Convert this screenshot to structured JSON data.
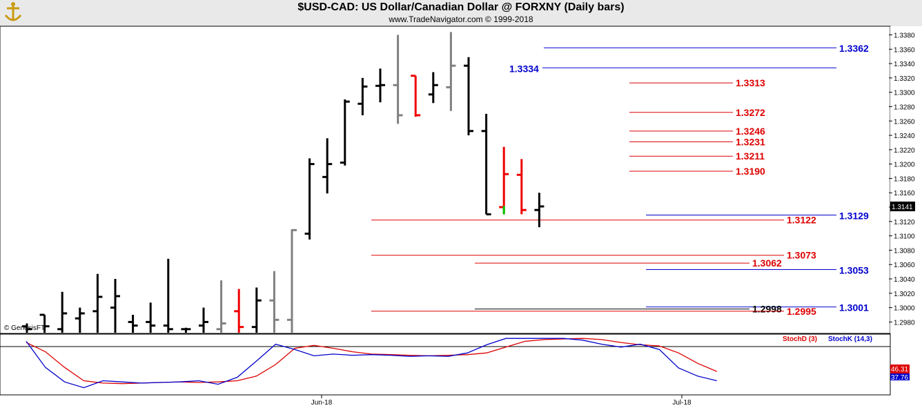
{
  "header": {
    "title": "$USD-CAD:  US Dollar/Canadian Dollar @ FORXNY  (Daily bars)",
    "subtitle": "www.TradeNavigator.com © 1999-2018"
  },
  "copyright": "© GenesisFT",
  "colors": {
    "blue_level": "#0000cc",
    "red_level": "#dd0000",
    "stoch_d": "#dd0000",
    "stoch_k": "#0000cc",
    "bar_black": "#000000",
    "bar_gray": "#808080",
    "bar_red": "#ee0000",
    "bar_green": "#00cc00"
  },
  "chart_data": [
    {
      "type": "ohlc",
      "yticks": [
        "1.2980",
        "1.3000",
        "1.3020",
        "1.3040",
        "1.3060",
        "1.3080",
        "1.3100",
        "1.3120",
        "1.3140",
        "1.3160",
        "1.3180",
        "1.3200",
        "1.3220",
        "1.3240",
        "1.3260",
        "1.3280",
        "1.3300",
        "1.3320",
        "1.3340",
        "1.3360",
        "1.3380"
      ],
      "ylim": [
        1.2965,
        1.3392
      ],
      "last_price": "1.3141",
      "bars": [
        {
          "o": 1.2974,
          "h": 1.2978,
          "l": 1.2965,
          "c": 1.297,
          "color": "black"
        },
        {
          "o": 1.299,
          "h": 1.299,
          "l": 1.2965,
          "c": 1.2974,
          "color": "black"
        },
        {
          "o": 1.297,
          "h": 1.3022,
          "l": 1.2965,
          "c": 1.2992,
          "color": "black"
        },
        {
          "o": 1.2985,
          "h": 1.3,
          "l": 1.2965,
          "c": 1.2992,
          "color": "black"
        },
        {
          "o": 1.2995,
          "h": 1.3047,
          "l": 1.2965,
          "c": 1.3015,
          "color": "black"
        },
        {
          "o": 1.3,
          "h": 1.304,
          "l": 1.2965,
          "c": 1.3016,
          "color": "black"
        },
        {
          "o": 1.298,
          "h": 1.299,
          "l": 1.2965,
          "c": 1.2975,
          "color": "black"
        },
        {
          "o": 1.298,
          "h": 1.3007,
          "l": 1.2965,
          "c": 1.2975,
          "color": "black"
        },
        {
          "o": 1.2975,
          "h": 1.3068,
          "l": 1.2965,
          "c": 1.297,
          "color": "black"
        },
        {
          "o": 1.297,
          "h": 1.2972,
          "l": 1.2965,
          "c": 1.297,
          "color": "black"
        },
        {
          "o": 1.2975,
          "h": 1.3,
          "l": 1.2965,
          "c": 1.298,
          "color": "black"
        },
        {
          "o": 1.297,
          "h": 1.3038,
          "l": 1.2965,
          "c": 1.2978,
          "color": "gray"
        },
        {
          "o": 1.2995,
          "h": 1.3026,
          "l": 1.2965,
          "c": 1.2973,
          "color": "red"
        },
        {
          "o": 1.2973,
          "h": 1.3028,
          "l": 1.2965,
          "c": 1.301,
          "color": "black"
        },
        {
          "o": 1.301,
          "h": 1.3051,
          "l": 1.2965,
          "c": 1.2983,
          "color": "gray"
        },
        {
          "o": 1.2983,
          "h": 1.3109,
          "l": 1.2965,
          "c": 1.3108,
          "color": "gray"
        },
        {
          "o": 1.3103,
          "h": 1.3208,
          "l": 1.3095,
          "c": 1.32,
          "color": "black"
        },
        {
          "o": 1.3182,
          "h": 1.3236,
          "l": 1.3159,
          "c": 1.32,
          "color": "black"
        },
        {
          "o": 1.3202,
          "h": 1.329,
          "l": 1.3198,
          "c": 1.3287,
          "color": "black"
        },
        {
          "o": 1.3284,
          "h": 1.332,
          "l": 1.3268,
          "c": 1.3308,
          "color": "black"
        },
        {
          "o": 1.3309,
          "h": 1.3333,
          "l": 1.3286,
          "c": 1.331,
          "color": "black"
        },
        {
          "o": 1.331,
          "h": 1.338,
          "l": 1.3256,
          "c": 1.3268,
          "color": "gray"
        },
        {
          "o": 1.3323,
          "h": 1.3323,
          "l": 1.3266,
          "c": 1.3268,
          "color": "red"
        },
        {
          "o": 1.3297,
          "h": 1.3328,
          "l": 1.3285,
          "c": 1.331,
          "color": "black"
        },
        {
          "o": 1.3307,
          "h": 1.3384,
          "l": 1.3274,
          "c": 1.3337,
          "color": "gray"
        },
        {
          "o": 1.3337,
          "h": 1.3349,
          "l": 1.324,
          "c": 1.3246,
          "color": "black"
        },
        {
          "o": 1.3246,
          "h": 1.327,
          "l": 1.313,
          "c": 1.313,
          "color": "black"
        },
        {
          "o": 1.314,
          "h": 1.3224,
          "l": 1.313,
          "c": 1.3186,
          "color": "red",
          "low_tick": "green"
        },
        {
          "o": 1.3185,
          "h": 1.3207,
          "l": 1.313,
          "c": 1.3136,
          "color": "red"
        },
        {
          "o": 1.3136,
          "h": 1.316,
          "l": 1.3112,
          "c": 1.3141,
          "color": "black"
        }
      ],
      "levels": [
        {
          "value": 1.3362,
          "label": "1.3362",
          "color": "blue"
        },
        {
          "value": 1.3334,
          "label": "1.3334",
          "color": "blue"
        },
        {
          "value": 1.3313,
          "label": "1.3313",
          "color": "red"
        },
        {
          "value": 1.3272,
          "label": "1.3272",
          "color": "red"
        },
        {
          "value": 1.3246,
          "label": "1.3246",
          "color": "red"
        },
        {
          "value": 1.3231,
          "label": "1.3231",
          "color": "red"
        },
        {
          "value": 1.3211,
          "label": "1.3211",
          "color": "red"
        },
        {
          "value": 1.319,
          "label": "1.3190",
          "color": "red"
        },
        {
          "value": 1.3129,
          "label": "1.3129",
          "color": "blue"
        },
        {
          "value": 1.3122,
          "label": "1.3122",
          "color": "red"
        },
        {
          "value": 1.3073,
          "label": "1.3073",
          "color": "red"
        },
        {
          "value": 1.3062,
          "label": "1.3062",
          "color": "red"
        },
        {
          "value": 1.3053,
          "label": "1.3053",
          "color": "blue"
        },
        {
          "value": 1.3001,
          "label": "1.3001",
          "color": "blue"
        },
        {
          "value": 1.2998,
          "label": "1.2998",
          "color": "black"
        },
        {
          "value": 1.2995,
          "label": "1.2995",
          "color": "red"
        }
      ]
    },
    {
      "type": "line",
      "series": [
        {
          "name": "StochD (3)",
          "color": "red",
          "values": [
            88,
            72,
            45,
            22,
            18,
            17,
            18,
            19,
            20,
            19,
            20,
            22,
            30,
            50,
            78,
            83,
            78,
            72,
            68,
            67,
            66,
            65,
            66,
            67,
            70,
            80,
            90,
            93,
            94,
            95,
            93,
            88,
            84,
            82,
            70,
            52,
            38
          ]
        },
        {
          "name": "StochK (14,3)",
          "color": "blue",
          "values": [
            90,
            45,
            20,
            10,
            22,
            20,
            18,
            19,
            20,
            22,
            16,
            28,
            56,
            85,
            76,
            65,
            68,
            66,
            67,
            66,
            64,
            65,
            64,
            70,
            84,
            95,
            95,
            95,
            95,
            92,
            85,
            80,
            85,
            76,
            44,
            30,
            22
          ]
        }
      ],
      "last_values": [
        "46.31",
        "37.76"
      ],
      "ylim": [
        0,
        100
      ],
      "xticks": [
        "Jun-18",
        "Jul-18"
      ]
    }
  ]
}
